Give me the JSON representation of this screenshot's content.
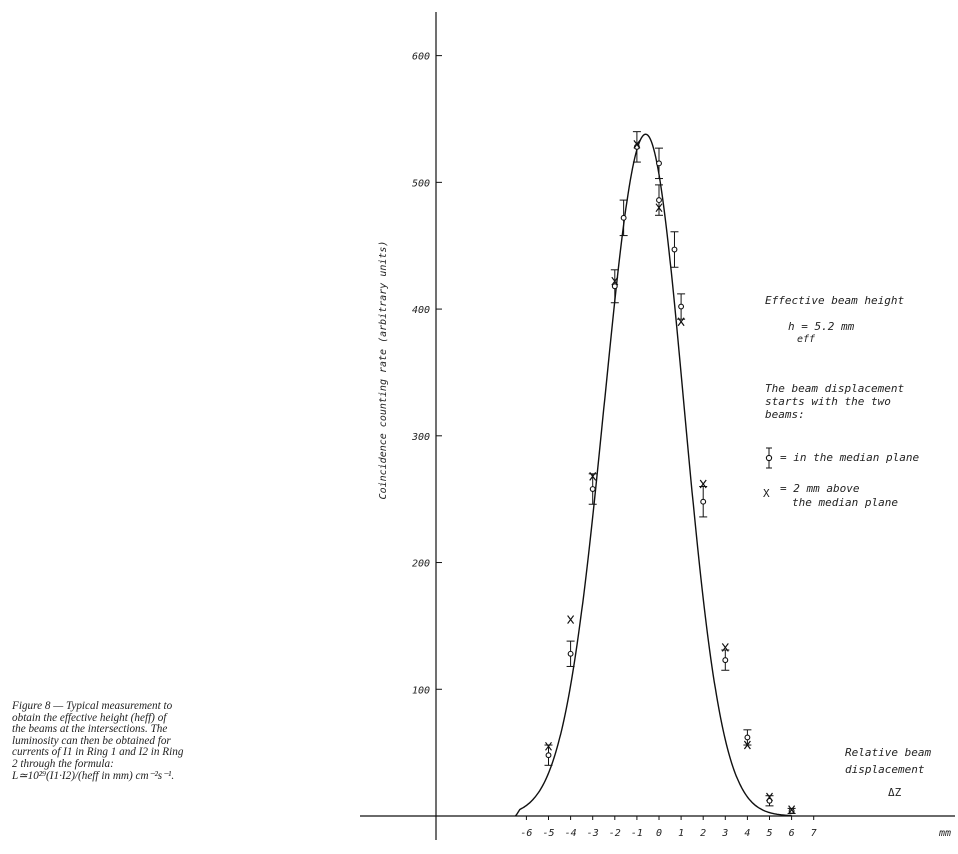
{
  "chart_data": {
    "type": "scatter",
    "ylabel": "Coincidence counting rate (arbitrary units)",
    "xlabel": "mm",
    "x_ticks": [
      -6,
      -5,
      -4,
      -3,
      -2,
      -1,
      0,
      1,
      2,
      3,
      4,
      5,
      6,
      7
    ],
    "y_ticks": [
      100,
      200,
      300,
      400,
      500,
      600
    ],
    "xlim": [
      -7.2,
      8.3
    ],
    "ylim": [
      0,
      640
    ],
    "fit_curve": {
      "shape": "gaussian",
      "peak_x": -0.6,
      "peak_y": 538,
      "x": [
        -6.5,
        -6,
        -5.5,
        -5,
        -4.5,
        -4,
        -3.5,
        -3,
        -2.5,
        -2,
        -1.5,
        -1,
        -0.6,
        -0.2,
        0.5,
        1,
        1.5,
        2,
        2.5,
        3,
        3.5,
        4,
        4.5,
        5,
        5.5,
        6
      ],
      "y": [
        0,
        12,
        28,
        48,
        82,
        130,
        196,
        268,
        345,
        420,
        485,
        528,
        538,
        530,
        480,
        420,
        345,
        268,
        196,
        130,
        82,
        48,
        24,
        10,
        4,
        0
      ]
    },
    "series": [
      {
        "name": "in the median plane",
        "marker": "circle-errorbar",
        "points": [
          {
            "x": -5,
            "y": 48,
            "err": 8
          },
          {
            "x": -4,
            "y": 128,
            "err": 10
          },
          {
            "x": -3,
            "y": 258,
            "err": 12
          },
          {
            "x": -2,
            "y": 418,
            "err": 13
          },
          {
            "x": -1.6,
            "y": 472,
            "err": 14
          },
          {
            "x": -1,
            "y": 528,
            "err": 12
          },
          {
            "x": 0,
            "y": 515,
            "err": 12
          },
          {
            "x": 0,
            "y": 486,
            "err": 12
          },
          {
            "x": 0.7,
            "y": 447,
            "err": 14
          },
          {
            "x": 1,
            "y": 402,
            "err": 10
          },
          {
            "x": 2,
            "y": 248,
            "err": 12
          },
          {
            "x": 3,
            "y": 123,
            "err": 8
          },
          {
            "x": 4,
            "y": 62,
            "err": 6
          },
          {
            "x": 5,
            "y": 12,
            "err": 4
          },
          {
            "x": 6,
            "y": 4,
            "err": 2
          }
        ]
      },
      {
        "name": "2 mm above the median plane",
        "marker": "x",
        "points": [
          {
            "x": -5,
            "y": 55
          },
          {
            "x": -4,
            "y": 155
          },
          {
            "x": -3,
            "y": 268
          },
          {
            "x": -2,
            "y": 422
          },
          {
            "x": -1,
            "y": 530
          },
          {
            "x": 0,
            "y": 480
          },
          {
            "x": 1,
            "y": 390
          },
          {
            "x": 2,
            "y": 262
          },
          {
            "x": 3,
            "y": 133
          },
          {
            "x": 4,
            "y": 56
          },
          {
            "x": 5,
            "y": 15
          },
          {
            "x": 6,
            "y": 5
          }
        ]
      }
    ],
    "grid": false
  },
  "annotations": {
    "effective_height_title": "Effective beam height",
    "effective_height_value": "h   = 5.2 mm",
    "effective_height_sub": "eff",
    "displacement_note_1": "The beam displacement",
    "displacement_note_2": "starts with the two",
    "displacement_note_3": "beams:",
    "legend_1": "= in the median plane",
    "legend_2a": "= 2 mm above",
    "legend_2b": "the median plane",
    "legend_x_glyph": "X",
    "relative_1": "Relative beam",
    "relative_2": "displacement",
    "relative_3": "ΔZ"
  },
  "caption": {
    "line1": "Figure 8 — Typical measurement to",
    "line2": "obtain the effective height (heff) of",
    "line3": "the beams at the intersections. The",
    "line4": "luminosity can then be obtained for",
    "line5": "currents of I1 in Ring 1 and I2 in Ring",
    "line6": "2 through the formula:",
    "line7": "L≃10²⁹(I1·I2)/(heff in mm) cm⁻²s⁻¹."
  }
}
